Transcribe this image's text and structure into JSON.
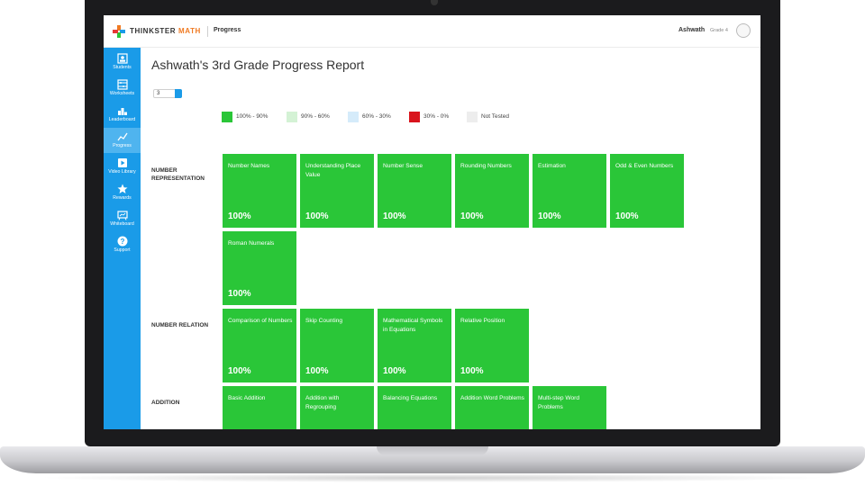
{
  "app": {
    "brand_main": "THINKSTER",
    "brand_accent": "MATH",
    "section": "Progress"
  },
  "user": {
    "name": "Ashwath",
    "grade": "Grade 4"
  },
  "sidebar": {
    "items": [
      {
        "label": "Students",
        "icon": "students-icon"
      },
      {
        "label": "Worksheets",
        "icon": "abacus-icon"
      },
      {
        "label": "Leaderboard",
        "icon": "leaderboard-icon"
      },
      {
        "label": "Progress",
        "icon": "progress-chart-icon",
        "active": true
      },
      {
        "label": "Video Library",
        "icon": "video-icon"
      },
      {
        "label": "Rewards",
        "icon": "star-icon"
      },
      {
        "label": "Whiteboard",
        "icon": "whiteboard-icon"
      },
      {
        "label": "Support",
        "icon": "help-icon"
      }
    ]
  },
  "report": {
    "title": "Ashwath's 3rd Grade Progress Report",
    "grade_select_value": "3"
  },
  "legend": [
    {
      "label": "100% - 90%",
      "color": "#2ac638"
    },
    {
      "label": "90% - 60%",
      "color": "#d4f2d5"
    },
    {
      "label": "60% - 30%",
      "color": "#d5ebfa"
    },
    {
      "label": "30% - 0%",
      "color": "#d9141c"
    },
    {
      "label": "Not Tested",
      "color": "#ededed"
    }
  ],
  "sections": [
    {
      "label_line1": "NUMBER",
      "label_line2": "REPRESENTATION",
      "tiles": [
        {
          "name": "Number Names",
          "pct": "100%"
        },
        {
          "name": "Understanding Place Value",
          "pct": "100%"
        },
        {
          "name": "Number Sense",
          "pct": "100%"
        },
        {
          "name": "Rounding Numbers",
          "pct": "100%"
        },
        {
          "name": "Estimation",
          "pct": "100%"
        },
        {
          "name": "Odd & Even Numbers",
          "pct": "100%"
        },
        {
          "name": "Roman Numerals",
          "pct": "100%"
        }
      ]
    },
    {
      "label_line1": "NUMBER RELATION",
      "label_line2": "",
      "tiles": [
        {
          "name": "Comparison of Numbers",
          "pct": "100%"
        },
        {
          "name": "Skip Counting",
          "pct": "100%"
        },
        {
          "name": "Mathematical Symbols in Equations",
          "pct": "100%"
        },
        {
          "name": "Relative Position",
          "pct": "100%"
        }
      ]
    },
    {
      "label_line1": "ADDITION",
      "label_line2": "",
      "tiles": [
        {
          "name": "Basic Addition",
          "pct": ""
        },
        {
          "name": "Addition with Regrouping",
          "pct": ""
        },
        {
          "name": "Balancing Equations",
          "pct": ""
        },
        {
          "name": "Addition Word Problems",
          "pct": ""
        },
        {
          "name": "Multi-step Word Problems",
          "pct": ""
        }
      ]
    }
  ]
}
